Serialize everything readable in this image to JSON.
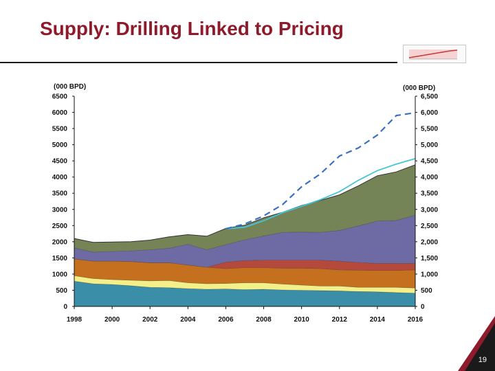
{
  "slide": {
    "title": "Supply: Drilling Linked to Pricing",
    "page_number": "19",
    "accent_color": "#8e1b2b",
    "thumbnail_icon": "mini-chart-thumbnail-icon"
  },
  "chart_data": {
    "type": "area",
    "stacked": true,
    "title": "",
    "xlabel": "",
    "ylabel_left": "(000 BPD)",
    "ylabel_right": "(000 BPD)",
    "ylim": [
      0,
      6500
    ],
    "yticks_left": [
      "0",
      "500",
      "1000",
      "1500",
      "2000",
      "2500",
      "3000",
      "3500",
      "4000",
      "4500",
      "5000",
      "5500",
      "6000",
      "6500"
    ],
    "yticks_right": [
      "0",
      "500",
      "1,000",
      "1,500",
      "2,000",
      "2,500",
      "3,000",
      "3,500",
      "4,000",
      "4,500",
      "5,000",
      "5,500",
      "6,000",
      "6,500"
    ],
    "xticks": [
      "1998",
      "2000",
      "2002",
      "2004",
      "2006",
      "2008",
      "2010",
      "2012",
      "2014",
      "2016"
    ],
    "x": [
      1998,
      1999,
      2000,
      2001,
      2002,
      2003,
      2004,
      2005,
      2006,
      2007,
      2008,
      2009,
      2010,
      2011,
      2012,
      2013,
      2014,
      2015,
      2016
    ],
    "series": [
      {
        "color": "#3b8ea8",
        "values": [
          780,
          700,
          680,
          640,
          590,
          580,
          550,
          530,
          540,
          520,
          530,
          510,
          500,
          490,
          480,
          460,
          450,
          430,
          410
        ]
      },
      {
        "color": "#f3f08a",
        "values": [
          170,
          160,
          150,
          170,
          200,
          220,
          180,
          170,
          170,
          210,
          200,
          180,
          160,
          140,
          150,
          130,
          140,
          160,
          160
        ]
      },
      {
        "color": "#c4701f",
        "values": [
          520,
          540,
          570,
          580,
          560,
          550,
          550,
          510,
          460,
          470,
          470,
          490,
          520,
          540,
          500,
          530,
          520,
          520,
          560
        ]
      },
      {
        "color": "#b5493b",
        "values": [
          0,
          0,
          0,
          0,
          0,
          0,
          0,
          0,
          200,
          220,
          230,
          250,
          250,
          260,
          270,
          240,
          220,
          220,
          200
        ]
      },
      {
        "color": "#6e6aa4",
        "values": [
          340,
          280,
          300,
          330,
          400,
          450,
          640,
          540,
          540,
          640,
          750,
          860,
          870,
          860,
          950,
          1130,
          1310,
          1330,
          1490
        ]
      },
      {
        "color": "#748456",
        "values": [
          290,
          300,
          290,
          280,
          300,
          350,
          300,
          420,
          500,
          450,
          560,
          620,
          820,
          990,
          1100,
          1240,
          1400,
          1500,
          1560
        ]
      }
    ],
    "lines": [
      {
        "color": "#46c4d8",
        "style": "solid",
        "x": [
          2006,
          2007,
          2008,
          2009,
          2010,
          2011,
          2012,
          2013,
          2014,
          2015,
          2016
        ],
        "values": [
          2400,
          2450,
          2650,
          2900,
          3100,
          3300,
          3550,
          3900,
          4200,
          4400,
          4570
        ]
      },
      {
        "color": "#3b6fc4",
        "style": "dashed",
        "x": [
          2006,
          2007,
          2008,
          2009,
          2010,
          2011,
          2012,
          2013,
          2014,
          2015,
          2016
        ],
        "values": [
          2400,
          2550,
          2800,
          3150,
          3700,
          4100,
          4650,
          4900,
          5300,
          5900,
          5990
        ]
      }
    ],
    "grid": false,
    "legend": "none"
  }
}
